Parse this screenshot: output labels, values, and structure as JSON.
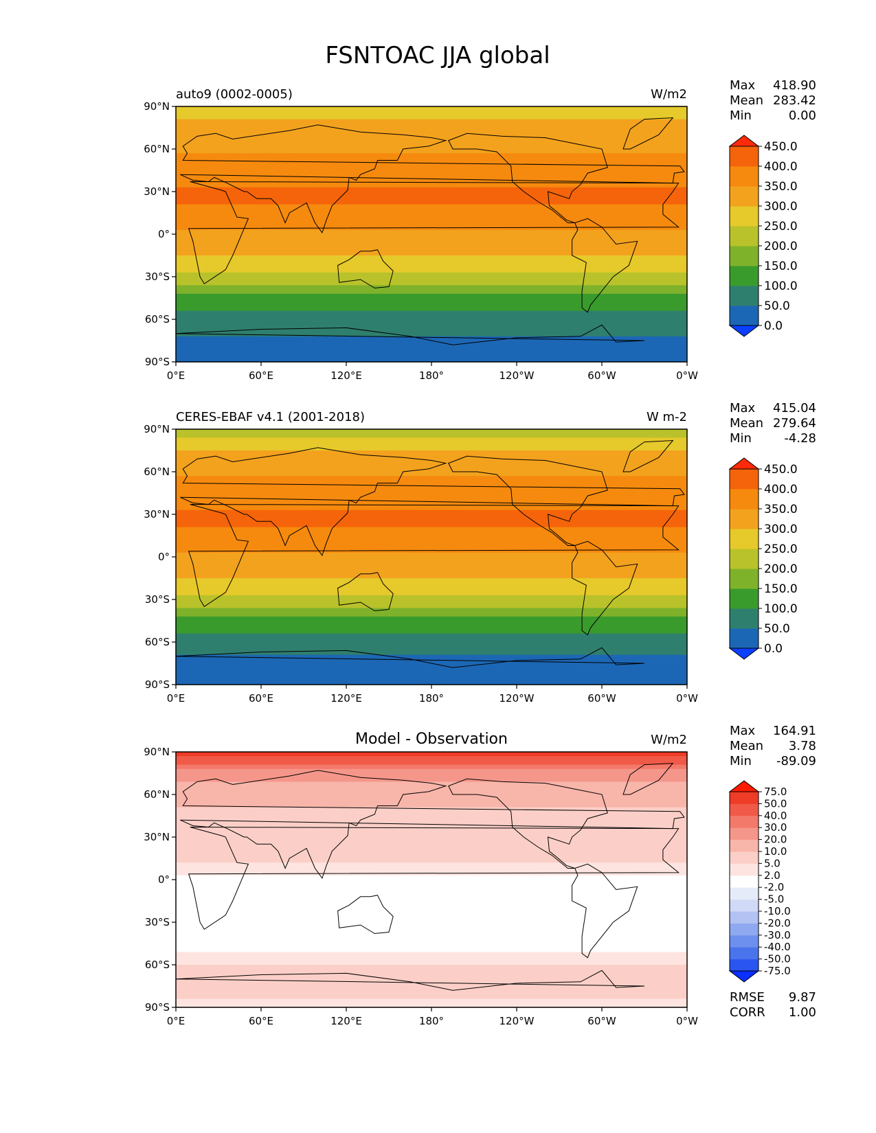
{
  "figure": {
    "title": "FSNTOAC JJA global"
  },
  "axes": {
    "lat_labels": [
      "90°N",
      "60°N",
      "30°N",
      "0°",
      "30°S",
      "60°S",
      "90°S"
    ],
    "lon_labels": [
      "0°E",
      "60°E",
      "120°E",
      "180°",
      "120°W",
      "60°W",
      "0°W"
    ]
  },
  "panels": [
    {
      "left_label": "auto9 (0002-0005)",
      "center_title": "",
      "units": "W/m2",
      "stats": {
        "max_label": "Max",
        "max": "418.90",
        "mean_label": "Mean",
        "mean": "283.42",
        "min_label": "Min",
        "min": "0.00"
      },
      "colorbar": {
        "levels": [
          "0.0",
          "50.0",
          "100.0",
          "150.0",
          "200.0",
          "250.0",
          "300.0",
          "350.0",
          "400.0",
          "450.0"
        ],
        "colors": [
          "#0a3fff",
          "#1c67b5",
          "#2f7f6e",
          "#3a9b2d",
          "#7fb22b",
          "#b9c22a",
          "#e6c92a",
          "#f3a21e",
          "#f68a0e",
          "#f5640a",
          "#ff2a0a"
        ]
      },
      "extra": []
    },
    {
      "left_label": "CERES-EBAF v4.1 (2001-2018)",
      "center_title": "",
      "units": "W m-2",
      "stats": {
        "max_label": "Max",
        "max": "415.04",
        "mean_label": "Mean",
        "mean": "279.64",
        "min_label": "Min",
        "min": "-4.28"
      },
      "colorbar": {
        "levels": [
          "0.0",
          "50.0",
          "100.0",
          "150.0",
          "200.0",
          "250.0",
          "300.0",
          "350.0",
          "400.0",
          "450.0"
        ],
        "colors": [
          "#0a3fff",
          "#1c67b5",
          "#2f7f6e",
          "#3a9b2d",
          "#7fb22b",
          "#b9c22a",
          "#e6c92a",
          "#f3a21e",
          "#f68a0e",
          "#f5640a",
          "#ff2a0a"
        ]
      },
      "extra": []
    },
    {
      "left_label": "",
      "center_title": "Model - Observation",
      "units": "W/m2",
      "stats": {
        "max_label": "Max",
        "max": "164.91",
        "mean_label": "Mean",
        "mean": "3.78",
        "min_label": "Min",
        "min": "-89.09"
      },
      "colorbar": {
        "levels": [
          "-75.0",
          "-50.0",
          "-40.0",
          "-30.0",
          "-20.0",
          "-10.0",
          "-5.0",
          "-2.0",
          "2.0",
          "5.0",
          "10.0",
          "20.0",
          "30.0",
          "40.0",
          "50.0",
          "75.0"
        ],
        "colors": [
          "#0a2fff",
          "#2a55f0",
          "#4a74ec",
          "#6d90ee",
          "#8fa9f0",
          "#b3c2f3",
          "#d0daf6",
          "#e6ebfa",
          "#ffffff",
          "#fde4e0",
          "#fbcfc7",
          "#f8b5aa",
          "#f5968a",
          "#f3796b",
          "#f15a48",
          "#ee3c26",
          "#ff1a00"
        ]
      },
      "extra": [
        {
          "label": "RMSE",
          "value": "9.87"
        },
        {
          "label": "CORR",
          "value": "1.00"
        }
      ]
    }
  ],
  "chart_data": [
    {
      "type": "heatmap",
      "title": "auto9 (0002-0005)",
      "units": "W/m2",
      "lat_bands": [
        90,
        75,
        60,
        45,
        30,
        15,
        0,
        -15,
        -30,
        -45,
        -60,
        -75,
        -90
      ],
      "zonal_values": [
        255,
        330,
        345,
        375,
        410,
        390,
        345,
        300,
        230,
        130,
        75,
        45,
        5
      ],
      "stats": {
        "max": 418.9,
        "mean": 283.42,
        "min": 0.0
      }
    },
    {
      "type": "heatmap",
      "title": "CERES-EBAF v4.1 (2001-2018)",
      "units": "W m-2",
      "lat_bands": [
        90,
        75,
        60,
        45,
        30,
        15,
        0,
        -15,
        -30,
        -45,
        -60,
        -75,
        -90
      ],
      "zonal_values": [
        220,
        300,
        340,
        375,
        410,
        390,
        345,
        300,
        230,
        130,
        75,
        30,
        0
      ],
      "stats": {
        "max": 415.04,
        "mean": 279.64,
        "min": -4.28
      }
    },
    {
      "type": "heatmap",
      "title": "Model - Observation",
      "units": "W/m2",
      "lat_bands": [
        90,
        75,
        60,
        45,
        30,
        15,
        0,
        -15,
        -30,
        -45,
        -60,
        -75,
        -90
      ],
      "zonal_values": [
        60,
        25,
        12,
        8,
        8,
        6,
        1,
        -1,
        0,
        0,
        5,
        8,
        3
      ],
      "stats": {
        "max": 164.91,
        "mean": 3.78,
        "min": -89.09,
        "rmse": 9.87,
        "corr": 1.0
      }
    }
  ]
}
